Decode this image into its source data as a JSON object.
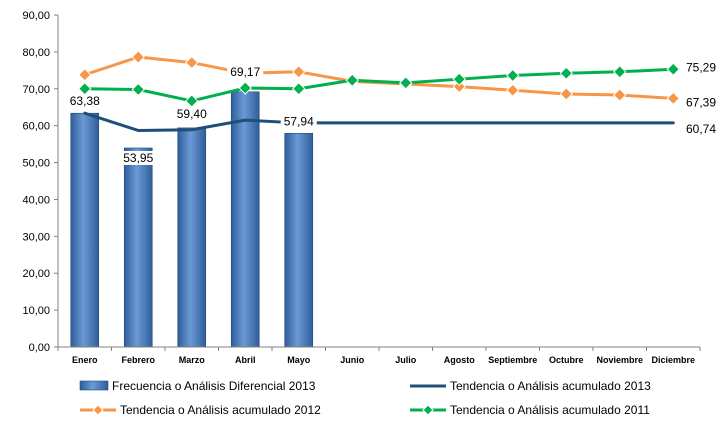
{
  "chart_data": {
    "type": "bar+line",
    "categories": [
      "Enero",
      "Febrero",
      "Marzo",
      "Abril",
      "Mayo",
      "Junio",
      "Julio",
      "Agosto",
      "Septiembre",
      "Octubre",
      "Noviembre",
      "Diciembre"
    ],
    "ylim": [
      0,
      90
    ],
    "yticks": [
      "0,00",
      "10,00",
      "20,00",
      "30,00",
      "40,00",
      "50,00",
      "60,00",
      "70,00",
      "80,00",
      "90,00"
    ],
    "grid": false,
    "legend_position": "bottom",
    "bars": {
      "name": "Frecuencia o Análisis Diferencial 2013",
      "color": "#4f81bd",
      "values": [
        63.38,
        53.95,
        59.4,
        69.17,
        57.94
      ],
      "labels": [
        "63,38",
        "53,95",
        "59,40",
        "69,17",
        "57,94"
      ]
    },
    "series": [
      {
        "name": "Tendencia o Análisis acumulado 2013",
        "color": "#1f4e79",
        "marker": "none",
        "values": [
          63.38,
          58.7,
          58.9,
          61.5,
          60.74,
          60.74,
          60.74,
          60.74,
          60.74,
          60.74,
          60.74,
          60.74
        ],
        "end_label": "60,74"
      },
      {
        "name": "Tendencia o Análisis acumulado 2012",
        "color": "#f79646",
        "marker": "diamond",
        "values": [
          73.8,
          78.6,
          77.1,
          74.2,
          74.6,
          72.0,
          71.3,
          70.6,
          69.6,
          68.6,
          68.3,
          67.39
        ],
        "end_label": "67,39"
      },
      {
        "name": "Tendencia o Análisis acumulado 2011",
        "color": "#00b050",
        "marker": "diamond",
        "values": [
          70.0,
          69.8,
          66.7,
          70.2,
          70.0,
          72.3,
          71.6,
          72.6,
          73.6,
          74.2,
          74.6,
          75.29
        ],
        "end_label": "75,29"
      }
    ]
  }
}
